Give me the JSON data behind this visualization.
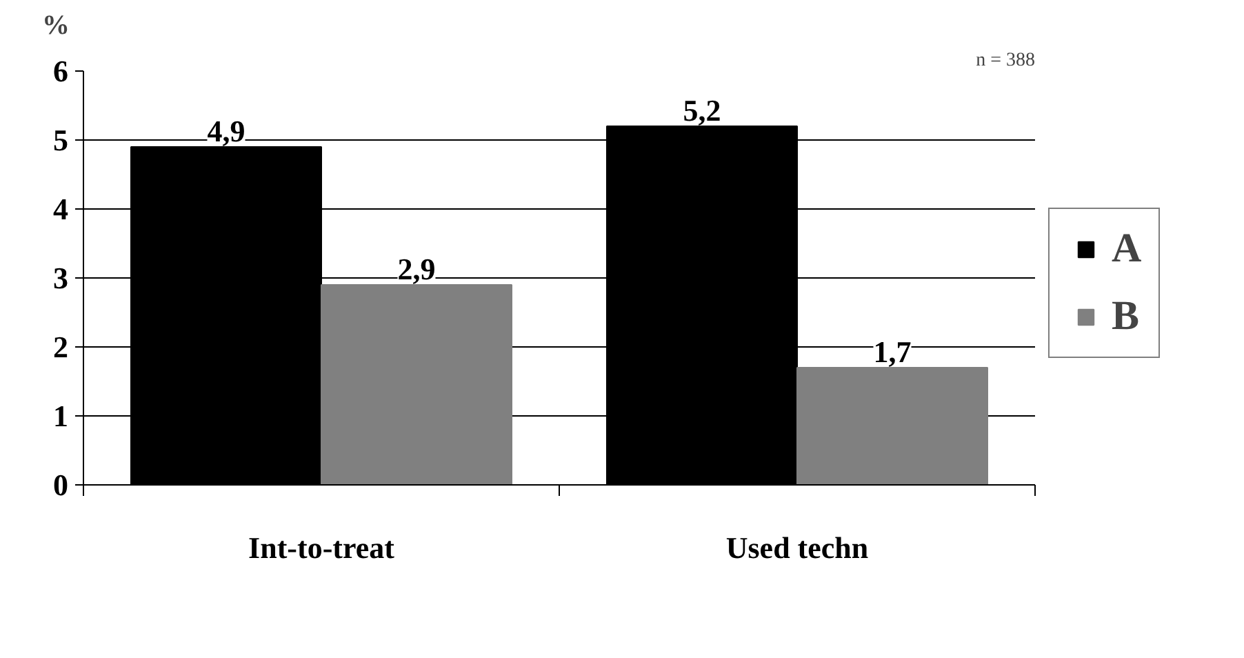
{
  "chart_data": {
    "type": "bar",
    "ylabel": "%",
    "categories": [
      "Int-to-treat",
      "Used techn"
    ],
    "series": [
      {
        "name": "A",
        "color": "#000000",
        "values": [
          4.9,
          5.2
        ],
        "value_labels": [
          "4,9",
          "5,2"
        ]
      },
      {
        "name": "B",
        "color": "#808080",
        "values": [
          2.9,
          1.7
        ],
        "value_labels": [
          "2,9",
          "1,7"
        ]
      }
    ],
    "ylim": [
      0,
      6
    ],
    "yticks": [
      0,
      1,
      2,
      3,
      4,
      5,
      6
    ],
    "grid": "y",
    "legend": "right",
    "annotations": [
      "n = 388"
    ]
  }
}
